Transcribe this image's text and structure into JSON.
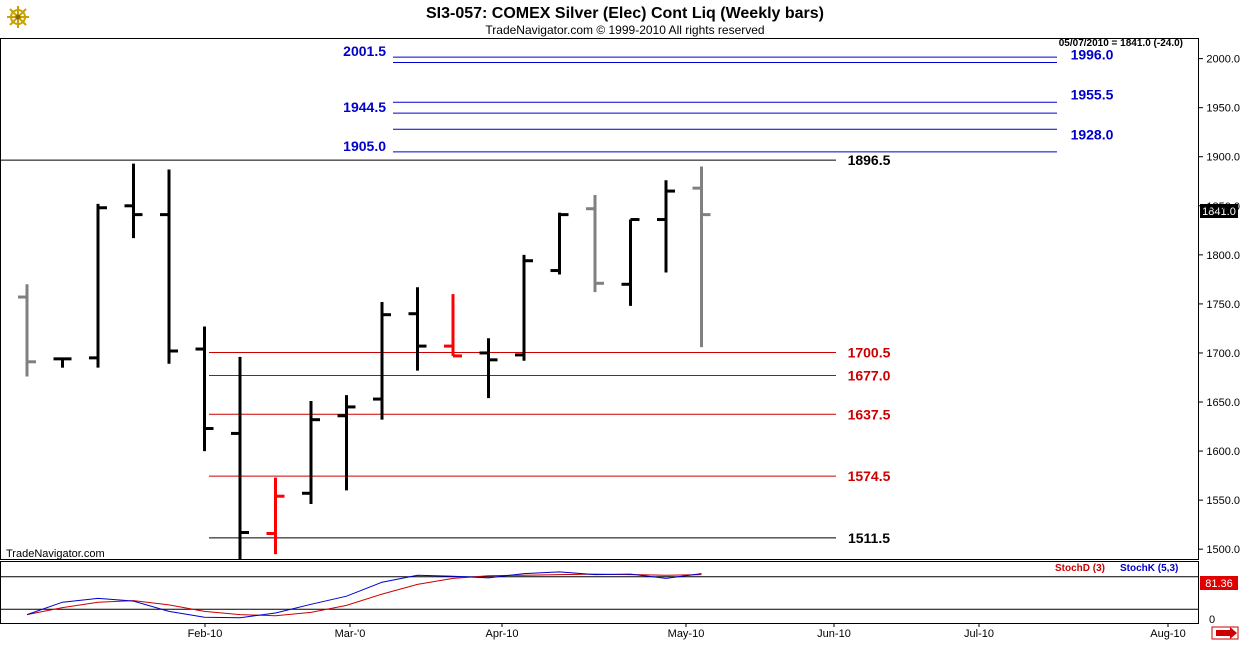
{
  "header": {
    "title": "SI3-057:  COMEX Silver (Elec) Cont Liq  (Weekly bars)",
    "copyright": "TradeNavigator.com © 1999-2010 All rights reserved",
    "readout": "05/07/2010 = 1841.0 (-24.0)",
    "watermark": "TradeNavigator.com",
    "logo_icon": "ship-wheel-icon",
    "scroll_icon": "arrow-right-icon"
  },
  "colors": {
    "up_bar": "#000000",
    "neutral_bar": "#808080",
    "down_bar": "#ff0000",
    "resistance": "#0000cc",
    "support": "#cc0000",
    "stoch_d": "#cc0000",
    "stoch_k": "#0000cc"
  },
  "chart_data": [
    {
      "type": "ohlc",
      "ylim": [
        1490,
        2020
      ],
      "y_ticks": [
        1500,
        1550,
        1600,
        1650,
        1700,
        1750,
        1800,
        1850,
        1900,
        1950,
        2000
      ],
      "x_ticks": [
        "Feb-10",
        "Mar-'0",
        "Apr-10",
        "May-10",
        "Jun-10",
        "Jul-10",
        "Aug-10"
      ],
      "last_price_label": "1841.0",
      "bars": [
        {
          "o": 1757,
          "h": 1770,
          "l": 1676,
          "c": 1691,
          "color": "neutral"
        },
        {
          "o": 1694,
          "h": 1693,
          "l": 1685,
          "c": 1694,
          "color": "up"
        },
        {
          "o": 1695,
          "h": 1852,
          "l": 1685,
          "c": 1848,
          "color": "up"
        },
        {
          "o": 1850,
          "h": 1893,
          "l": 1817,
          "c": 1841,
          "color": "up"
        },
        {
          "o": 1841,
          "h": 1887,
          "l": 1689,
          "c": 1702,
          "color": "up"
        },
        {
          "o": 1704,
          "h": 1727,
          "l": 1600,
          "c": 1623,
          "color": "up"
        },
        {
          "o": 1618,
          "h": 1696,
          "l": 1489,
          "c": 1517,
          "color": "up"
        },
        {
          "o": 1516,
          "h": 1573,
          "l": 1495,
          "c": 1554,
          "color": "down"
        },
        {
          "o": 1557,
          "h": 1651,
          "l": 1546,
          "c": 1632,
          "color": "up"
        },
        {
          "o": 1636,
          "h": 1657,
          "l": 1560,
          "c": 1645,
          "color": "up"
        },
        {
          "o": 1653,
          "h": 1752,
          "l": 1632,
          "c": 1739,
          "color": "up"
        },
        {
          "o": 1740,
          "h": 1767,
          "l": 1682,
          "c": 1707,
          "color": "up"
        },
        {
          "o": 1707,
          "h": 1760,
          "l": 1697,
          "c": 1697,
          "color": "down"
        },
        {
          "o": 1700,
          "h": 1715,
          "l": 1654,
          "c": 1693,
          "color": "up"
        },
        {
          "o": 1698,
          "h": 1800,
          "l": 1692,
          "c": 1794,
          "color": "up"
        },
        {
          "o": 1784,
          "h": 1843,
          "l": 1780,
          "c": 1841,
          "color": "up"
        },
        {
          "o": 1847,
          "h": 1861,
          "l": 1762,
          "c": 1771,
          "color": "neutral"
        },
        {
          "o": 1770,
          "h": 1836,
          "l": 1748,
          "c": 1836,
          "color": "up"
        },
        {
          "o": 1836,
          "h": 1876,
          "l": 1782,
          "c": 1865,
          "color": "up"
        },
        {
          "o": 1868,
          "h": 1890,
          "l": 1706,
          "c": 1841,
          "color": "neutral"
        }
      ],
      "levels": [
        {
          "label": "2001.5",
          "y": 2001.5,
          "kind": "resistance",
          "label_side": "left"
        },
        {
          "label": "1996.0",
          "y": 1996.0,
          "kind": "resistance",
          "label_side": "right"
        },
        {
          "label": "1955.5",
          "y": 1955.5,
          "kind": "resistance",
          "label_side": "right"
        },
        {
          "label": "1944.5",
          "y": 1944.5,
          "kind": "resistance",
          "label_side": "left"
        },
        {
          "label": "1928.0",
          "y": 1928.0,
          "kind": "resistance",
          "label_side": "right"
        },
        {
          "label": "1905.0",
          "y": 1905.0,
          "kind": "resistance",
          "label_side": "left"
        },
        {
          "label": "1896.5",
          "y": 1896.5,
          "kind": "pivot",
          "label_side": "right"
        },
        {
          "label": "1700.5",
          "y": 1700.5,
          "kind": "support",
          "label_side": "right"
        },
        {
          "label": "1677.0",
          "y": 1677.0,
          "kind": "support",
          "label_side": "right"
        },
        {
          "label": "1637.5",
          "y": 1637.5,
          "kind": "support",
          "label_side": "right"
        },
        {
          "label": "1574.5",
          "y": 1574.5,
          "kind": "support",
          "label_side": "right"
        },
        {
          "label": "1511.5",
          "y": 1511.5,
          "kind": "pivot",
          "label_side": "right"
        }
      ]
    },
    {
      "type": "line",
      "ylim": [
        0,
        100
      ],
      "y_ticks": [
        0
      ],
      "last_value_label": "81.36",
      "legend": [
        "StochD (3)",
        "StochK (5,3)"
      ],
      "series": [
        {
          "name": "StochD (3)",
          "color": "#cc0000",
          "values": [
            10,
            23,
            33,
            36,
            28,
            16,
            10,
            8,
            14,
            27,
            48,
            66,
            77,
            82,
            83,
            84,
            85,
            84,
            83,
            84
          ]
        },
        {
          "name": "StochK (5,3)",
          "color": "#0000cc",
          "values": [
            10,
            33,
            40,
            35,
            16,
            5,
            4,
            13,
            29,
            44,
            70,
            83,
            81,
            78,
            86,
            89,
            84,
            85,
            77,
            86
          ]
        }
      ]
    }
  ]
}
